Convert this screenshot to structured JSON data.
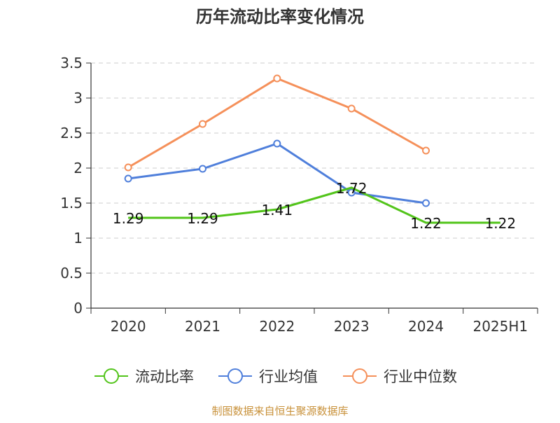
{
  "chart_data": {
    "type": "line",
    "title": "历年流动比率变化情况",
    "categories": [
      "2020",
      "2021",
      "2022",
      "2023",
      "2024",
      "2025H1"
    ],
    "y_ticks": [
      "0",
      "0.5",
      "1",
      "1.5",
      "2",
      "2.5",
      "3",
      "3.5"
    ],
    "ylim": [
      0,
      3.5
    ],
    "grid": true,
    "legend_position": "bottom",
    "series": [
      {
        "name": "流动比率",
        "color": "#52c41a",
        "values": [
          1.29,
          1.29,
          1.41,
          1.72,
          1.22,
          1.22
        ],
        "labels": [
          "1.29",
          "1.29",
          "1.41",
          "1.72",
          "1.22",
          "1.22"
        ]
      },
      {
        "name": "行业均值",
        "color": "#4f7fdb",
        "values": [
          1.85,
          1.99,
          2.35,
          1.65,
          1.5,
          null
        ]
      },
      {
        "name": "行业中位数",
        "color": "#f5905a",
        "values": [
          2.01,
          2.63,
          3.28,
          2.85,
          2.25,
          null
        ]
      }
    ],
    "source": "制图数据来自恒生聚源数据库"
  }
}
